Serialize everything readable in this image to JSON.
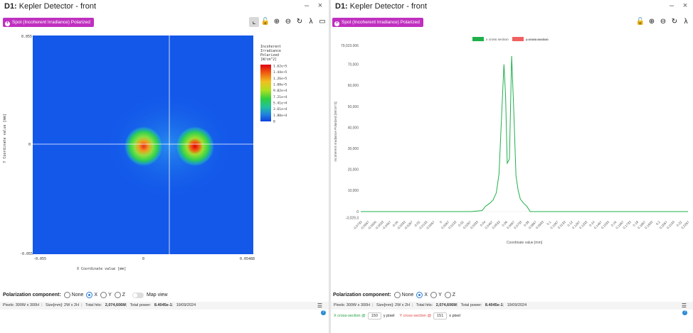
{
  "left": {
    "title_bold": "D1:",
    "title_rest": " Kepler Detector - front",
    "chip_label": "Spot (Incoherent Irradiance) Polarized",
    "heatmap": {
      "y_label": "Y Coordinate value [mm]",
      "x_label": "X Coordinate value [mm]",
      "x_ticks": [
        "-0.055",
        "0",
        "0.05488"
      ],
      "y_ticks": [
        "0.055",
        "0",
        "-0.055"
      ],
      "legend_title": [
        "Incoherent",
        "Irradiance",
        "Polarized",
        "[W/cm^2]"
      ],
      "legend_values": [
        "1.62e+5",
        "1.44e+5",
        "1.26e+5",
        "1.08e+5",
        "9.02e+4",
        "7.21e+4",
        "5.41e+4",
        "3.61e+4",
        "1.80e+4",
        "0"
      ]
    },
    "polarization": {
      "label": "Polarization component:",
      "options": [
        "None",
        "X",
        "Y",
        "Z"
      ],
      "selected": "X",
      "map_view_label": "Map view"
    },
    "status": {
      "pixels": "Pixels: 300W x 300H",
      "size": "Size[mm]: 2W x 2H",
      "hits_label": "Total hits: ",
      "hits_value": "2,074,606M",
      "power_label": "Total power: ",
      "power_value": "8.4045e-1",
      "date": "19/09/2024"
    }
  },
  "right": {
    "title_bold": "D1:",
    "title_rest": " Kepler Detector - front",
    "chip_label": "Spot (Incoherent Irradiance) Polarized",
    "polarization": {
      "label": "Polarization component:",
      "options": [
        "None",
        "X",
        "Y",
        "Z"
      ],
      "selected": "X"
    },
    "status": {
      "pixels": "Pixels: 300W x 300H",
      "size": "Size[mm]: 2W x 2H",
      "hits_label": "Total hits: ",
      "hits_value": "2,074,606M",
      "power_label": "Total power: ",
      "power_value": "8.4045e-1",
      "date": "19/09/2024"
    },
    "xsection": {
      "x_label": "X cross-section @",
      "x_value": "150",
      "x_unit": "y pixel",
      "y_label": "Y cross-section @",
      "y_value": "151",
      "y_unit": "x pixel"
    }
  },
  "colors": {
    "accent_chip": "#c030c0",
    "series_x": "#1fb04a",
    "series_y": "#f06060"
  },
  "chart_data": {
    "type": "line",
    "xlabel": "Coordinate value [mm]",
    "ylabel": "Incoherent Irradiance Polarized [W/cm^2]",
    "ylim": [
      -3029.3,
      79023.006
    ],
    "y_top_label": "79,023.006",
    "y_bottom_label": "-3,029.3",
    "y_ticks": [
      0,
      10000,
      20000,
      30000,
      40000,
      50000,
      60000,
      70000
    ],
    "y_tick_labels": [
      "0",
      "10,000",
      "20,000",
      "30,000",
      "40,000",
      "50,000",
      "60,000",
      "70,000"
    ],
    "x_tick_labels": [
      "-0.0733",
      "-0.0667",
      "-0.0600",
      "-0.0533",
      "-0.0467",
      "-0.04",
      "-0.0333",
      "-0.0267",
      "-0.02",
      "-0.0133",
      "-0.0067",
      "0",
      "0.0067",
      "0.0133",
      "0.02",
      "0.0267",
      "0.0333",
      "0.04",
      "0.0467",
      "0.0533",
      "0.06",
      "0.0667",
      "0.0733",
      "0.08",
      "0.0867",
      "0.0933",
      "0.1",
      "0.1067",
      "0.1133",
      "0.12",
      "0.1267",
      "0.1333",
      "0.14",
      "0.1467",
      "0.1533",
      "0.16",
      "0.1667",
      "0.1733",
      "0.18",
      "0.1867",
      "0.1933",
      "0.2",
      "0.2067",
      "0.2133",
      "0.22",
      "0.2267"
    ],
    "legend_position": "top",
    "grid": false,
    "series": [
      {
        "name": "x cross section",
        "x": [
          -0.0733,
          0.028,
          0.038,
          0.041,
          0.045,
          0.048,
          0.051,
          0.0535,
          0.056,
          0.058,
          0.0595,
          0.061,
          0.063,
          0.065,
          0.067,
          0.069,
          0.071,
          0.073,
          0.076,
          0.079,
          0.082,
          0.2267
        ],
        "values": [
          0,
          0,
          500,
          2500,
          4000,
          5500,
          9000,
          18000,
          48000,
          70000,
          55000,
          23000,
          25000,
          74000,
          48000,
          17000,
          10000,
          6000,
          4000,
          2500,
          0,
          0
        ]
      },
      {
        "name": "y cross section",
        "x": [],
        "values": []
      }
    ]
  }
}
